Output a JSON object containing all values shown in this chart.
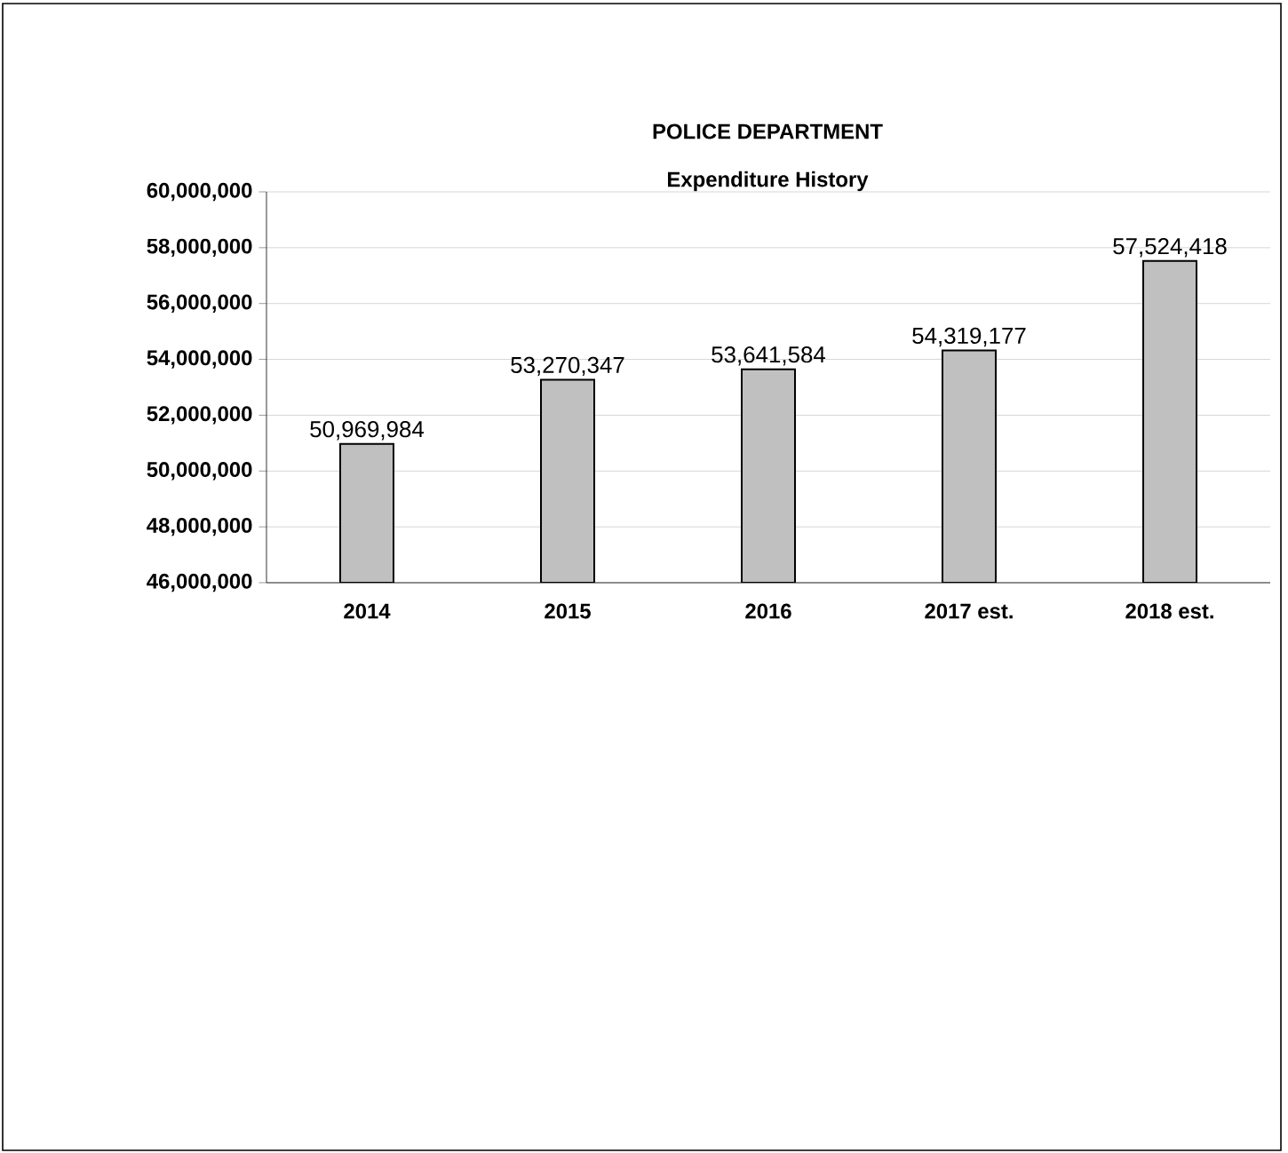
{
  "chart_data": {
    "type": "bar",
    "title": "POLICE DEPARTMENT",
    "subtitle": "Expenditure History",
    "categories": [
      "2014",
      "2015",
      "2016",
      "2017 est.",
      "2018 est."
    ],
    "values": [
      50969984,
      53270347,
      53641584,
      54319177,
      57524418
    ],
    "value_labels": [
      "50,969,984",
      "53,270,347",
      "53,641,584",
      "54,319,177",
      "57,524,418"
    ],
    "color": "#c0c0c0",
    "ylim": [
      46000000,
      60000000
    ],
    "yticks": [
      {
        "value": 46000000,
        "label": "46,000,000"
      },
      {
        "value": 48000000,
        "label": "48,000,000"
      },
      {
        "value": 50000000,
        "label": "50,000,000"
      },
      {
        "value": 52000000,
        "label": "52,000,000"
      },
      {
        "value": 54000000,
        "label": "54,000,000"
      },
      {
        "value": 56000000,
        "label": "56,000,000"
      },
      {
        "value": 58000000,
        "label": "58,000,000"
      },
      {
        "value": 60000000,
        "label": "60,000,000"
      }
    ],
    "grid": "y"
  }
}
